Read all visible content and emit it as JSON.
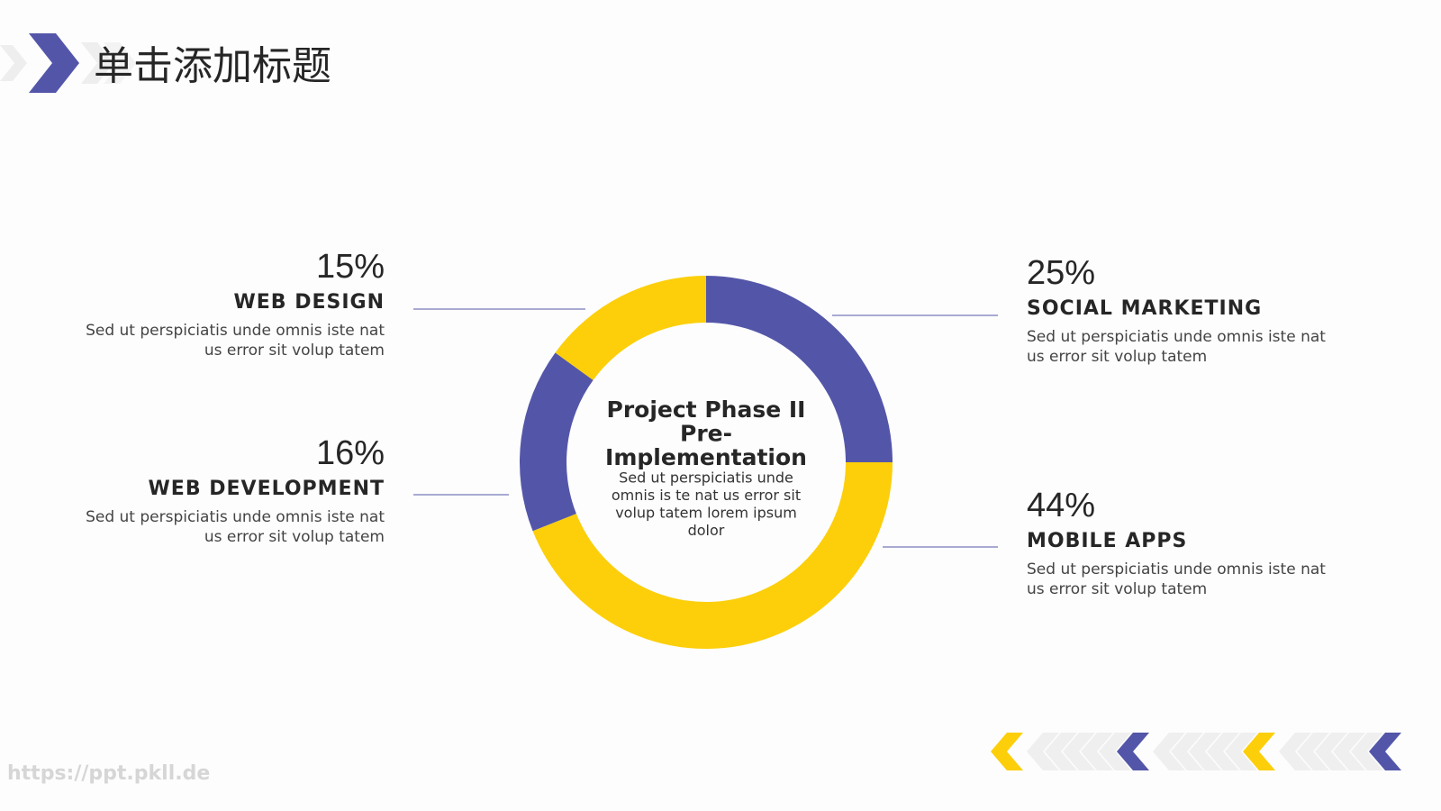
{
  "header": {
    "title": "单击添加标题"
  },
  "watermark": "https://ppt.pkll.de",
  "chart_data": {
    "type": "pie",
    "donut": true,
    "center_title": [
      "Project Phase II",
      "Pre-",
      "Implementation"
    ],
    "center_text": [
      "Sed ut perspiciatis unde",
      "omnis is te nat us error sit",
      "volup tatem lorem ipsum",
      "dolor"
    ],
    "categories": [
      "SOCIAL MARKETING",
      "MOBILE APPS",
      "WEB DEVELOPMENT",
      "WEB DESIGN"
    ],
    "values": [
      25,
      44,
      16,
      15
    ],
    "value_labels": [
      "25%",
      "44%",
      "16%",
      "15%"
    ],
    "colors": [
      "#5356a8",
      "#fccf0a",
      "#5356a8",
      "#fccf0a"
    ],
    "descriptions": [
      [
        "Sed ut perspiciatis unde omnis iste nat",
        "us error sit volup tatem"
      ],
      [
        "Sed ut perspiciatis unde omnis iste nat",
        "us error sit volup tatem"
      ],
      [
        "Sed ut perspiciatis unde omnis iste nat",
        "us error sit volup tatem"
      ],
      [
        "Sed ut perspiciatis unde omnis iste nat",
        "us error sit volup tatem"
      ]
    ]
  }
}
